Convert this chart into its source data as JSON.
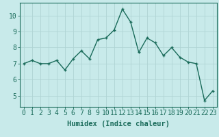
{
  "x": [
    0,
    1,
    2,
    3,
    4,
    5,
    6,
    7,
    8,
    9,
    10,
    11,
    12,
    13,
    14,
    15,
    16,
    17,
    18,
    19,
    20,
    21,
    22,
    23
  ],
  "y": [
    7.0,
    7.2,
    7.0,
    7.0,
    7.2,
    6.6,
    7.3,
    7.8,
    7.3,
    8.5,
    8.6,
    9.1,
    10.4,
    9.6,
    7.7,
    8.6,
    8.3,
    7.5,
    8.0,
    7.4,
    7.1,
    7.0,
    4.7,
    5.3
  ],
  "line_color": "#1a6b5a",
  "marker": "+",
  "bg_color": "#c8eaea",
  "grid_color": "#b0d4d4",
  "xlabel": "Humidex (Indice chaleur)",
  "xlim": [
    -0.5,
    23.5
  ],
  "ylim": [
    4.3,
    10.8
  ],
  "yticks": [
    5,
    6,
    7,
    8,
    9,
    10
  ],
  "xticks": [
    0,
    1,
    2,
    3,
    4,
    5,
    6,
    7,
    8,
    9,
    10,
    11,
    12,
    13,
    14,
    15,
    16,
    17,
    18,
    19,
    20,
    21,
    22,
    23
  ],
  "tick_color": "#1a6b5a",
  "font_size_xlabel": 7.5,
  "font_size_ticks": 7,
  "line_width": 1.0,
  "marker_size": 3.5,
  "marker_edge_width": 1.0
}
